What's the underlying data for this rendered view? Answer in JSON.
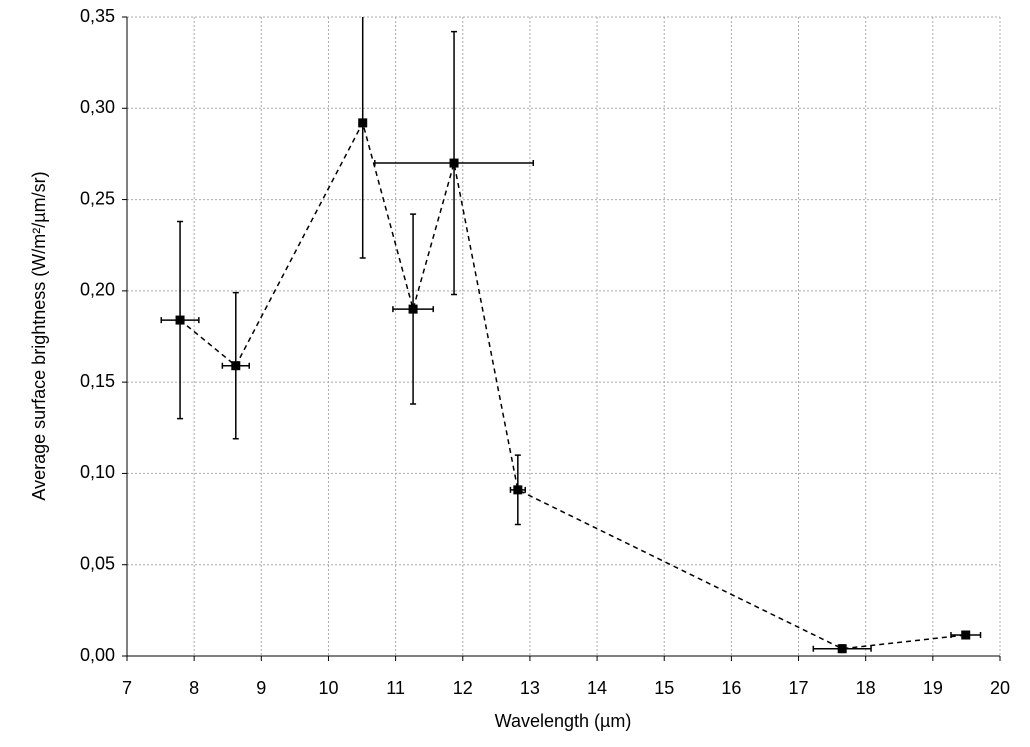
{
  "chart_data": {
    "type": "scatter",
    "xlabel": "Wavelength (µm)",
    "ylabel": "Average surface brightness (W/m²/µm/sr)",
    "xlim": [
      7,
      20
    ],
    "xticks": [
      7,
      8,
      9,
      10,
      11,
      12,
      13,
      14,
      15,
      16,
      17,
      18,
      19,
      20
    ],
    "ylim": [
      0,
      0.35
    ],
    "yticks": [
      {
        "value": 0,
        "label": "0,00"
      },
      {
        "value": 0.05,
        "label": "0,05"
      },
      {
        "value": 0.1,
        "label": "0,10"
      },
      {
        "value": 0.15,
        "label": "0,15"
      },
      {
        "value": 0.2,
        "label": "0,20"
      },
      {
        "value": 0.25,
        "label": "0,25"
      },
      {
        "value": 0.3,
        "label": "0,30"
      },
      {
        "value": 0.35,
        "label": "0,35"
      }
    ],
    "grid": true,
    "series": [
      {
        "color": "#000000",
        "x": [
          7.79,
          8.62,
          10.51,
          11.26,
          11.87,
          12.82,
          17.65,
          19.49
        ],
        "values": [
          0.184,
          0.159,
          0.292,
          0.19,
          0.27,
          0.091,
          0.004,
          0.0115
        ],
        "x_errors": [
          0.28,
          0.2,
          0,
          0.3,
          1.18,
          0.11,
          0.43,
          0.22
        ],
        "y_errors": [
          0.054,
          0.04,
          0.074,
          0.052,
          0.072,
          0.019,
          0.002,
          0.002
        ]
      }
    ]
  }
}
